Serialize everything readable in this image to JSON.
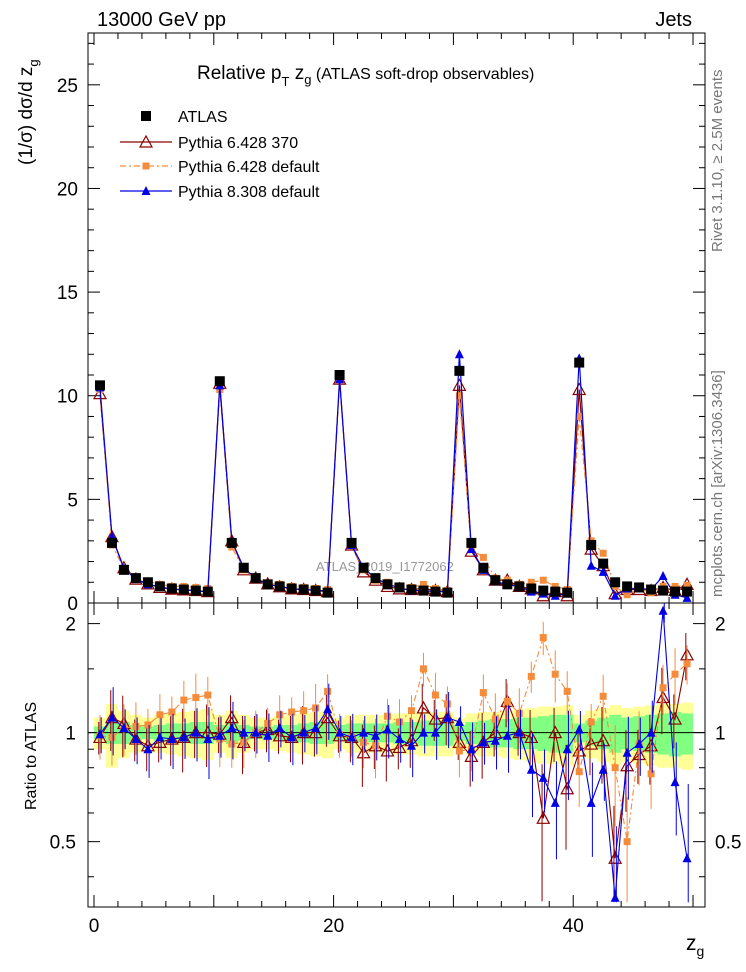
{
  "header": {
    "left_label": "13000 GeV pp",
    "right_label": "Jets"
  },
  "side_labels": {
    "rivet": "Rivet 3.1.10, ≥ 2.5M events",
    "mcplots": "mcplots.cern.ch [arXiv:1306.3436]"
  },
  "watermark": "ATLAS_2019_I1772062",
  "colors": {
    "atlas": "#000000",
    "py6_370": "#8b0000",
    "py6_default": "#f58c3c",
    "py8": "#0000e6",
    "band_inner": "#80ff80",
    "band_outer": "#ffff99"
  },
  "chart_data": {
    "type": "line",
    "title": "Relative p_T z_g (ATLAS soft-drop observables)",
    "title_parts": {
      "main": "Relative p",
      "sub": "T",
      "tail": " z",
      "tail_sub": "g",
      "rest": " (ATLAS soft-drop observables)"
    },
    "xlabel": "z_g",
    "xlabel_parts": {
      "main": "z",
      "sub": "g"
    },
    "ylabel": "(1/σ) dσ/d z_g",
    "ylabel_parts": {
      "main": "(1/σ) dσ/d z",
      "sub": "g"
    },
    "ratio_ylabel": "Ratio to ATLAS",
    "xlim": [
      -0.5,
      51
    ],
    "ylim": [
      0,
      27.5
    ],
    "ratio_ylim": [
      0.33,
      2.28
    ],
    "xticks": [
      0,
      20,
      40
    ],
    "yticks": [
      0,
      5,
      10,
      15,
      20,
      25
    ],
    "ratio_yticks": [
      0.5,
      1,
      2
    ],
    "x": [
      0.5,
      1.5,
      2.5,
      3.5,
      4.5,
      5.5,
      6.5,
      7.5,
      8.5,
      9.5,
      10.5,
      11.5,
      12.5,
      13.5,
      14.5,
      15.5,
      16.5,
      17.5,
      18.5,
      19.5,
      20.5,
      21.5,
      22.5,
      23.5,
      24.5,
      25.5,
      26.5,
      27.5,
      28.5,
      29.5,
      30.5,
      31.5,
      32.5,
      33.5,
      34.5,
      35.5,
      36.5,
      37.5,
      38.5,
      39.5,
      40.5,
      41.5,
      42.5,
      43.5,
      44.5,
      45.5,
      46.5,
      47.5,
      48.5,
      49.5
    ],
    "series": [
      {
        "name": "ATLAS",
        "marker": "square",
        "values": [
          10.5,
          2.9,
          1.6,
          1.2,
          1.0,
          0.8,
          0.7,
          0.65,
          0.6,
          0.55,
          10.7,
          2.9,
          1.7,
          1.2,
          0.9,
          0.8,
          0.7,
          0.65,
          0.6,
          0.5,
          11.0,
          2.9,
          1.7,
          1.2,
          0.9,
          0.75,
          0.65,
          0.6,
          0.55,
          0.5,
          11.2,
          2.9,
          1.7,
          1.1,
          0.9,
          0.8,
          0.7,
          0.6,
          0.55,
          0.5,
          11.6,
          2.8,
          1.9,
          1.0,
          0.8,
          0.75,
          0.65,
          0.6,
          0.55,
          0.55
        ]
      },
      {
        "name": "Pythia 6.428 370",
        "marker": "open-triangle",
        "values": [
          10.1,
          3.2,
          1.7,
          1.15,
          0.92,
          0.75,
          0.67,
          0.63,
          0.6,
          0.55,
          10.6,
          3.0,
          1.6,
          1.2,
          0.92,
          0.78,
          0.68,
          0.65,
          0.6,
          0.55,
          10.8,
          2.8,
          1.5,
          1.1,
          0.8,
          0.68,
          0.65,
          0.7,
          0.6,
          0.55,
          10.5,
          2.5,
          1.6,
          1.1,
          1.1,
          0.8,
          0.68,
          0.35,
          0.55,
          0.35,
          10.3,
          2.6,
          1.8,
          0.45,
          0.65,
          0.65,
          0.6,
          0.75,
          0.6,
          0.9
        ]
      },
      {
        "name": "Pythia 6.428 default",
        "marker": "filled-square",
        "values": [
          10.3,
          2.8,
          1.65,
          1.25,
          1.05,
          0.9,
          0.8,
          0.8,
          0.75,
          0.7,
          10.3,
          2.7,
          1.6,
          1.2,
          0.95,
          0.9,
          0.8,
          0.75,
          0.7,
          0.65,
          10.9,
          2.8,
          1.6,
          1.1,
          1.0,
          0.8,
          0.75,
          0.9,
          0.7,
          0.6,
          10.0,
          2.6,
          2.2,
          1.2,
          1.1,
          0.9,
          1.0,
          1.1,
          0.8,
          0.65,
          9.0,
          3.0,
          2.4,
          0.8,
          0.4,
          0.7,
          0.5,
          0.8,
          0.8,
          0.85
        ]
      },
      {
        "name": "Pythia 8.308 default",
        "marker": "filled-triangle",
        "values": [
          10.4,
          3.2,
          1.65,
          1.15,
          0.9,
          0.78,
          0.67,
          0.63,
          0.6,
          0.53,
          10.5,
          3.0,
          1.7,
          1.2,
          0.88,
          0.82,
          0.68,
          0.65,
          0.62,
          0.58,
          10.8,
          2.8,
          1.7,
          1.18,
          0.92,
          0.72,
          0.6,
          0.6,
          0.55,
          0.55,
          12.0,
          2.6,
          1.6,
          1.05,
          0.88,
          0.8,
          0.55,
          0.45,
          0.35,
          0.45,
          11.8,
          1.8,
          1.5,
          0.35,
          0.7,
          0.7,
          0.65,
          1.3,
          0.4,
          0.25
        ]
      }
    ],
    "ratio_series": [
      {
        "name": "Pythia 6.428 370",
        "values": [
          0.97,
          1.1,
          1.06,
          0.96,
          0.92,
          0.94,
          0.96,
          0.97,
          1.0,
          1.0,
          0.99,
          1.1,
          0.94,
          1.0,
          1.02,
          0.98,
          0.97,
          1.0,
          1.0,
          1.1,
          0.98,
          0.97,
          0.88,
          0.92,
          0.89,
          0.91,
          0.95,
          1.17,
          1.09,
          1.1,
          0.94,
          0.86,
          0.94,
          1.0,
          1.22,
          1.0,
          0.97,
          0.58,
          1.0,
          0.7,
          0.89,
          0.93,
          0.95,
          0.45,
          0.81,
          0.87,
          0.92,
          1.25,
          1.09,
          1.64
        ]
      },
      {
        "name": "Pythia 6.428 default",
        "values": [
          0.98,
          0.97,
          1.03,
          1.04,
          1.05,
          1.12,
          1.14,
          1.23,
          1.25,
          1.27,
          0.96,
          0.93,
          0.94,
          1.0,
          1.06,
          1.12,
          1.14,
          1.15,
          1.17,
          1.3,
          0.99,
          0.97,
          0.94,
          0.92,
          1.11,
          1.07,
          1.15,
          1.5,
          1.27,
          1.2,
          0.89,
          0.9,
          1.29,
          1.09,
          1.22,
          1.13,
          1.43,
          1.83,
          1.45,
          1.3,
          0.78,
          1.07,
          1.26,
          0.8,
          0.5,
          0.93,
          0.77,
          1.33,
          1.45,
          1.55
        ]
      },
      {
        "name": "Pythia 8.308 default",
        "values": [
          0.99,
          1.1,
          1.03,
          0.96,
          0.9,
          0.97,
          0.96,
          0.97,
          1.0,
          0.96,
          0.98,
          1.03,
          1.0,
          1.0,
          0.98,
          1.03,
          0.97,
          1.0,
          1.03,
          1.16,
          1.0,
          0.97,
          1.0,
          0.98,
          1.02,
          0.96,
          0.92,
          1.0,
          1.0,
          1.1,
          1.07,
          0.9,
          0.94,
          0.95,
          0.98,
          1.0,
          0.79,
          0.75,
          0.64,
          0.9,
          1.02,
          0.64,
          0.79,
          0.35,
          0.88,
          0.93,
          1.0,
          2.17,
          0.73,
          0.45
        ]
      }
    ],
    "bands": {
      "stat": [
        0.04,
        0.07,
        0.07,
        0.05,
        0.04,
        0.05,
        0.06,
        0.06,
        0.07,
        0.07,
        0.05,
        0.07,
        0.05,
        0.04,
        0.04,
        0.05,
        0.05,
        0.06,
        0.07,
        0.07,
        0.05,
        0.06,
        0.06,
        0.06,
        0.06,
        0.07,
        0.07,
        0.08,
        0.08,
        0.08,
        0.05,
        0.07,
        0.08,
        0.09,
        0.09,
        0.1,
        0.1,
        0.11,
        0.12,
        0.12,
        0.06,
        0.08,
        0.1,
        0.12,
        0.1,
        0.11,
        0.12,
        0.13,
        0.14,
        0.13
      ],
      "total": [
        0.1,
        0.2,
        0.15,
        0.12,
        0.1,
        0.12,
        0.13,
        0.14,
        0.15,
        0.16,
        0.12,
        0.15,
        0.12,
        0.1,
        0.1,
        0.11,
        0.12,
        0.13,
        0.14,
        0.15,
        0.1,
        0.12,
        0.12,
        0.12,
        0.12,
        0.13,
        0.13,
        0.14,
        0.14,
        0.14,
        0.1,
        0.13,
        0.14,
        0.14,
        0.15,
        0.16,
        0.17,
        0.18,
        0.18,
        0.19,
        0.12,
        0.15,
        0.17,
        0.19,
        0.17,
        0.18,
        0.19,
        0.2,
        0.2,
        0.21
      ]
    },
    "legend_position": "top-left",
    "grid": false
  }
}
